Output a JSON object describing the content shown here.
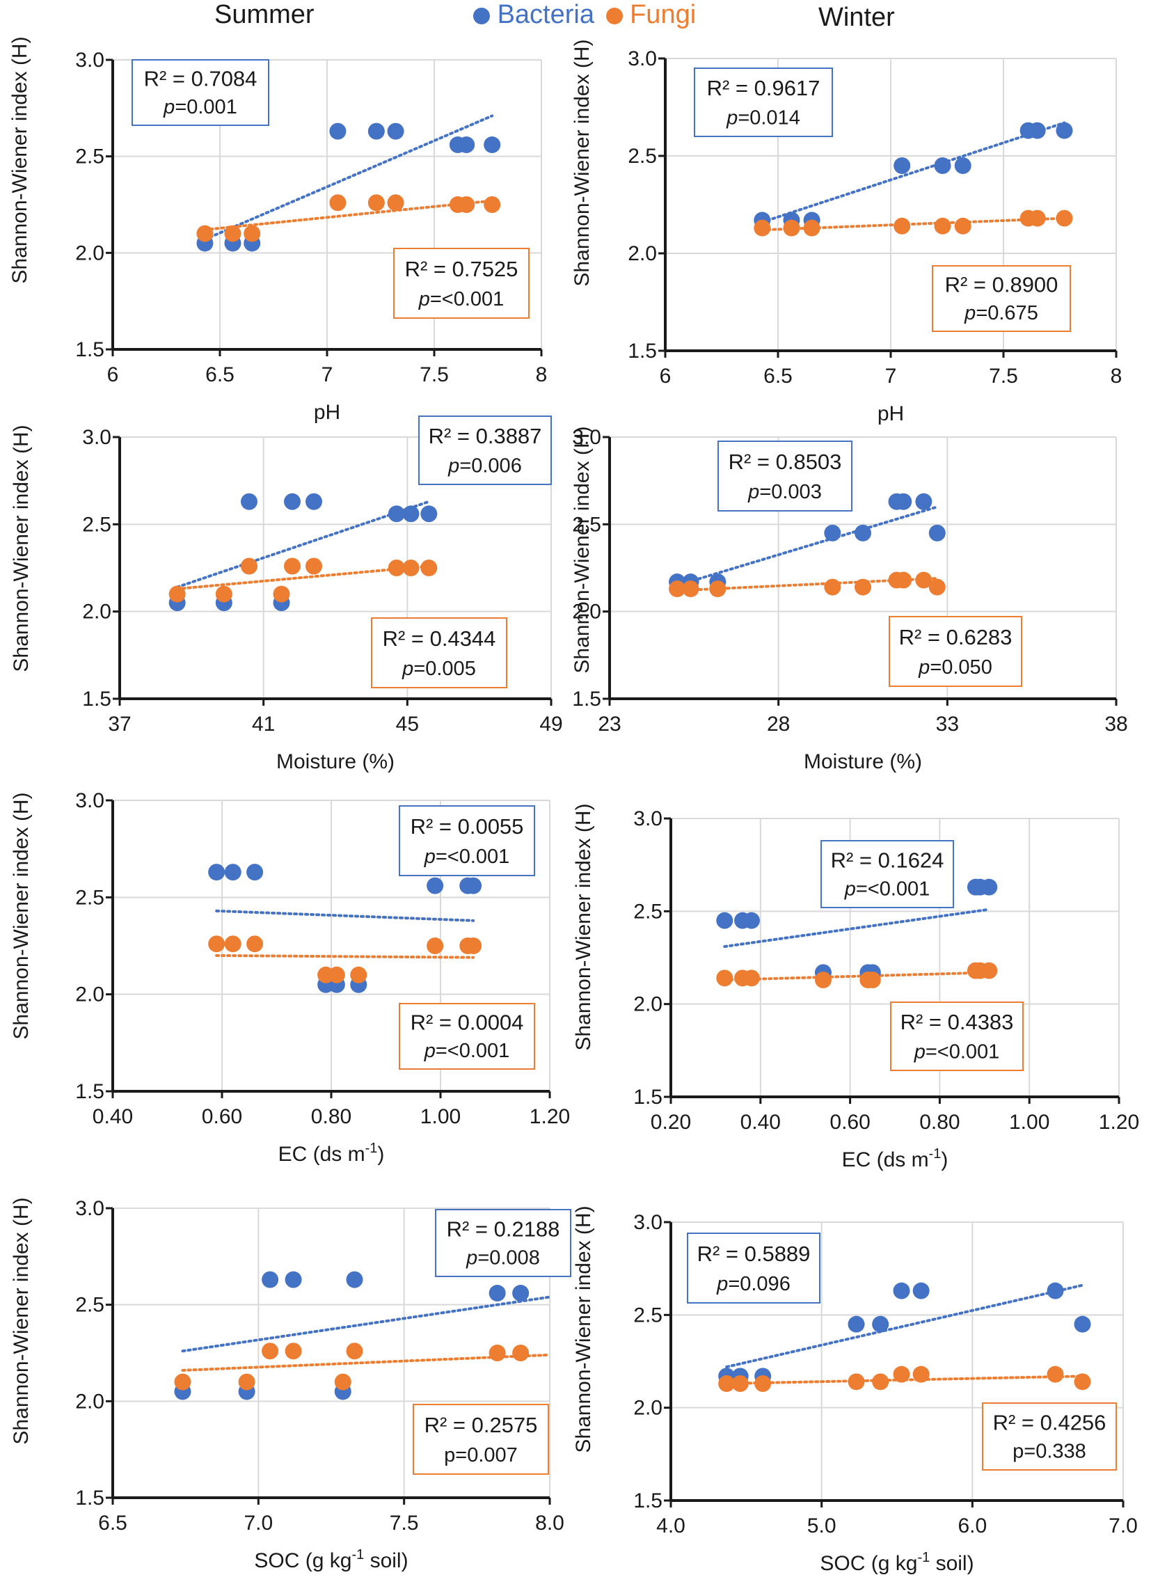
{
  "header": {
    "summer_title": "Summer",
    "winter_title": "Winter",
    "legend": [
      {
        "label": "Bacteria",
        "color": "#4472c4"
      },
      {
        "label": "Fungi",
        "color": "#ed7d31"
      }
    ]
  },
  "chart_data": [
    {
      "id": "summer-ph",
      "type": "scatter",
      "title": "",
      "xlabel": "pH",
      "ylabel": "Shannon-Wiener index (H)",
      "xlim": [
        6,
        8
      ],
      "ylim": [
        1.5,
        3.0
      ],
      "xticks": [
        "6",
        "6.5",
        "7",
        "7.5",
        "8"
      ],
      "yticks": [
        "1.5",
        "2.0",
        "2.5",
        "3.0"
      ],
      "series": [
        {
          "name": "Bacteria",
          "x": [
            6.43,
            6.56,
            6.65,
            7.05,
            7.23,
            7.32,
            7.61,
            7.65,
            7.77
          ],
          "y": [
            2.05,
            2.05,
            2.05,
            2.63,
            2.63,
            2.63,
            2.56,
            2.56,
            2.56
          ],
          "trend_x": [
            6.43,
            7.77
          ],
          "trend_y": [
            2.07,
            2.71
          ]
        },
        {
          "name": "Fungi",
          "x": [
            6.43,
            6.56,
            6.65,
            7.05,
            7.23,
            7.32,
            7.61,
            7.65,
            7.77
          ],
          "y": [
            2.1,
            2.1,
            2.1,
            2.26,
            2.26,
            2.26,
            2.25,
            2.25,
            2.25
          ],
          "trend_x": [
            6.43,
            7.77
          ],
          "trend_y": [
            2.12,
            2.27
          ]
        }
      ],
      "annotations": [
        {
          "r2": "R² = 0.7084",
          "p_label": "p",
          "p_value": "=0.001",
          "color": "#4472c4"
        },
        {
          "r2": "R² = 0.7525",
          "p_label": "p",
          "p_value": "=<0.001",
          "color": "#ed7d31"
        }
      ]
    },
    {
      "id": "winter-ph",
      "type": "scatter",
      "title": "",
      "xlabel": "pH",
      "ylabel": "Shannon-Wiener index (H)",
      "xlim": [
        6,
        8
      ],
      "ylim": [
        1.5,
        3.0
      ],
      "xticks": [
        "6",
        "6.5",
        "7",
        "7.5",
        "8"
      ],
      "yticks": [
        "1.5",
        "2.0",
        "2.5",
        "3.0"
      ],
      "series": [
        {
          "name": "Bacteria",
          "x": [
            6.43,
            6.56,
            6.65,
            7.05,
            7.23,
            7.32,
            7.61,
            7.65,
            7.77
          ],
          "y": [
            2.17,
            2.17,
            2.17,
            2.45,
            2.45,
            2.45,
            2.63,
            2.63,
            2.63
          ],
          "trend_x": [
            6.43,
            7.77
          ],
          "trend_y": [
            2.16,
            2.67
          ]
        },
        {
          "name": "Fungi",
          "x": [
            6.43,
            6.56,
            6.65,
            7.05,
            7.23,
            7.32,
            7.61,
            7.65,
            7.77
          ],
          "y": [
            2.13,
            2.13,
            2.13,
            2.14,
            2.14,
            2.14,
            2.18,
            2.18,
            2.18
          ],
          "trend_x": [
            6.43,
            7.77
          ],
          "trend_y": [
            2.12,
            2.18
          ]
        }
      ],
      "annotations": [
        {
          "r2": "R² = 0.9617",
          "p_label": "p",
          "p_value": "=0.014",
          "color": "#4472c4"
        },
        {
          "r2": "R² = 0.8900",
          "p_label": "p",
          "p_value": "=0.675",
          "color": "#ed7d31"
        }
      ]
    },
    {
      "id": "summer-moisture",
      "type": "scatter",
      "title": "",
      "xlabel": "Moisture (%)",
      "ylabel": "Shannon-Wiener index (H)",
      "xlim": [
        37,
        49
      ],
      "ylim": [
        1.5,
        3.0
      ],
      "xticks": [
        "37",
        "41",
        "45",
        "49"
      ],
      "yticks": [
        "1.5",
        "2.0",
        "2.5",
        "3.0"
      ],
      "series": [
        {
          "name": "Bacteria",
          "x": [
            38.6,
            39.9,
            41.5,
            40.6,
            41.8,
            42.4,
            44.7,
            45.1,
            45.6
          ],
          "y": [
            2.05,
            2.05,
            2.05,
            2.63,
            2.63,
            2.63,
            2.56,
            2.56,
            2.56
          ],
          "trend_x": [
            38.6,
            45.6
          ],
          "trend_y": [
            2.14,
            2.63
          ]
        },
        {
          "name": "Fungi",
          "x": [
            38.6,
            39.9,
            41.5,
            40.6,
            41.8,
            42.4,
            44.7,
            45.1,
            45.6
          ],
          "y": [
            2.1,
            2.1,
            2.1,
            2.26,
            2.26,
            2.26,
            2.25,
            2.25,
            2.25
          ],
          "trend_x": [
            38.6,
            45.6
          ],
          "trend_y": [
            2.13,
            2.26
          ]
        }
      ],
      "annotations": [
        {
          "r2": "R² = 0.3887",
          "p_label": "p",
          "p_value": "=0.006",
          "color": "#4472c4"
        },
        {
          "r2": "R² = 0.4344",
          "p_label": "p",
          "p_value": "=0.005",
          "color": "#ed7d31"
        }
      ]
    },
    {
      "id": "winter-moisture",
      "type": "scatter",
      "title": "",
      "xlabel": "Moisture (%)",
      "ylabel": "Shannon-Wiener index (H)",
      "xlim": [
        23,
        38
      ],
      "ylim": [
        1.5,
        3.0
      ],
      "xticks": [
        "23",
        "28",
        "33",
        "38"
      ],
      "yticks": [
        "1.5",
        "2.0",
        "2.5",
        "3.0"
      ],
      "series": [
        {
          "name": "Bacteria",
          "x": [
            25.0,
            25.4,
            26.2,
            29.6,
            30.5,
            31.5,
            31.7,
            32.3,
            32.7
          ],
          "y": [
            2.17,
            2.17,
            2.17,
            2.45,
            2.45,
            2.63,
            2.63,
            2.63,
            2.45
          ],
          "trend_x": [
            25.0,
            32.7
          ],
          "trend_y": [
            2.15,
            2.6
          ]
        },
        {
          "name": "Fungi",
          "x": [
            25.0,
            25.4,
            26.2,
            29.6,
            30.5,
            31.5,
            31.7,
            32.3,
            32.7
          ],
          "y": [
            2.13,
            2.13,
            2.13,
            2.14,
            2.14,
            2.18,
            2.18,
            2.18,
            2.14
          ],
          "trend_x": [
            25.0,
            32.7
          ],
          "trend_y": [
            2.12,
            2.19
          ]
        }
      ],
      "annotations": [
        {
          "r2": "R² = 0.8503",
          "p_label": "p",
          "p_value": "=0.003",
          "color": "#4472c4"
        },
        {
          "r2": "R² = 0.6283",
          "p_label": "p",
          "p_value": "=0.050",
          "color": "#ed7d31"
        }
      ]
    },
    {
      "id": "summer-ec",
      "type": "scatter",
      "title": "",
      "xlabel": "EC (ds m",
      "xlabel_sup": "-1",
      "xlabel_tail": ")",
      "ylabel": "Shannon-Wiener index (H)",
      "xlim": [
        0.4,
        1.2
      ],
      "ylim": [
        1.5,
        3.0
      ],
      "xticks": [
        "0.40",
        "0.60",
        "0.80",
        "1.00",
        "1.20"
      ],
      "yticks": [
        "1.5",
        "2.0",
        "2.5",
        "3.0"
      ],
      "series": [
        {
          "name": "Bacteria",
          "x": [
            0.59,
            0.62,
            0.66,
            0.79,
            0.81,
            0.85,
            0.99,
            1.05,
            1.06
          ],
          "y": [
            2.63,
            2.63,
            2.63,
            2.05,
            2.05,
            2.05,
            2.56,
            2.56,
            2.56
          ],
          "trend_x": [
            0.59,
            1.06
          ],
          "trend_y": [
            2.43,
            2.38
          ]
        },
        {
          "name": "Fungi",
          "x": [
            0.59,
            0.62,
            0.66,
            0.79,
            0.81,
            0.85,
            0.99,
            1.05,
            1.06
          ],
          "y": [
            2.26,
            2.26,
            2.26,
            2.1,
            2.1,
            2.1,
            2.25,
            2.25,
            2.25
          ],
          "trend_x": [
            0.59,
            1.06
          ],
          "trend_y": [
            2.2,
            2.19
          ]
        }
      ],
      "annotations": [
        {
          "r2": "R² = 0.0055",
          "p_label": "p",
          "p_value": "=<0.001",
          "color": "#4472c4"
        },
        {
          "r2": "R² = 0.0004",
          "p_label": "p",
          "p_value": "=<0.001",
          "color": "#ed7d31"
        }
      ]
    },
    {
      "id": "winter-ec",
      "type": "scatter",
      "title": "",
      "xlabel": "EC (ds m",
      "xlabel_sup": "-1",
      "xlabel_tail": ")",
      "ylabel": "Shannon-Wiener index (H)",
      "xlim": [
        0.2,
        1.2
      ],
      "ylim": [
        1.5,
        3.0
      ],
      "xticks": [
        "0.20",
        "0.40",
        "0.60",
        "0.80",
        "1.00",
        "1.20"
      ],
      "yticks": [
        "1.5",
        "2.0",
        "2.5",
        "3.0"
      ],
      "series": [
        {
          "name": "Bacteria",
          "x": [
            0.32,
            0.36,
            0.38,
            0.54,
            0.64,
            0.65,
            0.88,
            0.89,
            0.91
          ],
          "y": [
            2.45,
            2.45,
            2.45,
            2.17,
            2.17,
            2.17,
            2.63,
            2.63,
            2.63
          ],
          "trend_x": [
            0.32,
            0.91
          ],
          "trend_y": [
            2.31,
            2.51
          ]
        },
        {
          "name": "Fungi",
          "x": [
            0.32,
            0.36,
            0.38,
            0.54,
            0.64,
            0.65,
            0.88,
            0.89,
            0.91
          ],
          "y": [
            2.14,
            2.14,
            2.14,
            2.13,
            2.13,
            2.13,
            2.18,
            2.18,
            2.18
          ],
          "trend_x": [
            0.32,
            0.91
          ],
          "trend_y": [
            2.13,
            2.17
          ]
        }
      ],
      "annotations": [
        {
          "r2": "R² = 0.1624",
          "p_label": "p",
          "p_value": "=<0.001",
          "color": "#4472c4"
        },
        {
          "r2": "R² = 0.4383",
          "p_label": "p",
          "p_value": "=<0.001",
          "color": "#ed7d31"
        }
      ]
    },
    {
      "id": "summer-soc",
      "type": "scatter",
      "title": "",
      "xlabel": "SOC (g kg",
      "xlabel_sup": "-1",
      "xlabel_tail": " soil)",
      "ylabel": "Shannon-Wiener index (H)",
      "xlim": [
        6.5,
        8.0
      ],
      "ylim": [
        1.5,
        3.0
      ],
      "xticks": [
        "6.5",
        "7.0",
        "7.5",
        "8.0"
      ],
      "yticks": [
        "1.5",
        "2.0",
        "2.5",
        "3.0"
      ],
      "series": [
        {
          "name": "Bacteria",
          "x": [
            6.74,
            6.96,
            7.29,
            7.04,
            7.12,
            7.33,
            7.82,
            7.9
          ],
          "y": [
            2.05,
            2.05,
            2.05,
            2.63,
            2.63,
            2.63,
            2.56,
            2.56
          ],
          "trend_x": [
            6.74,
            8.0
          ],
          "trend_y": [
            2.26,
            2.54
          ]
        },
        {
          "name": "Fungi",
          "x": [
            6.74,
            6.96,
            7.29,
            7.04,
            7.12,
            7.33,
            7.82,
            7.9
          ],
          "y": [
            2.1,
            2.1,
            2.1,
            2.26,
            2.26,
            2.26,
            2.25,
            2.25
          ],
          "trend_x": [
            6.74,
            8.0
          ],
          "trend_y": [
            2.16,
            2.24
          ]
        }
      ],
      "annotations": [
        {
          "r2": "R² = 0.2188",
          "p_label": "p",
          "p_value": "=0.008",
          "color": "#4472c4"
        },
        {
          "r2": "R² = 0.2575",
          "p_label": "",
          "p_value": "p=0.007",
          "color": "#ed7d31"
        }
      ]
    },
    {
      "id": "winter-soc",
      "type": "scatter",
      "title": "",
      "xlabel": "SOC (g kg",
      "xlabel_sup": "-1",
      "xlabel_tail": " soil)",
      "ylabel": "Shannon-Wiener index (H)",
      "xlim": [
        4.0,
        7.0
      ],
      "ylim": [
        1.5,
        3.0
      ],
      "xticks": [
        "4.0",
        "5.0",
        "6.0",
        "7.0"
      ],
      "yticks": [
        "1.5",
        "2.0",
        "2.5",
        "3.0"
      ],
      "series": [
        {
          "name": "Bacteria",
          "x": [
            4.37,
            4.46,
            4.61,
            5.23,
            5.39,
            5.53,
            5.66,
            6.55,
            6.73
          ],
          "y": [
            2.17,
            2.17,
            2.17,
            2.45,
            2.45,
            2.63,
            2.63,
            2.63,
            2.45
          ],
          "trend_x": [
            4.37,
            6.73
          ],
          "trend_y": [
            2.22,
            2.66
          ]
        },
        {
          "name": "Fungi",
          "x": [
            4.37,
            4.46,
            4.61,
            5.23,
            5.39,
            5.53,
            5.66,
            6.55,
            6.73
          ],
          "y": [
            2.13,
            2.13,
            2.13,
            2.14,
            2.14,
            2.18,
            2.18,
            2.18,
            2.14
          ],
          "trend_x": [
            4.37,
            6.73
          ],
          "trend_y": [
            2.13,
            2.17
          ]
        }
      ],
      "annotations": [
        {
          "r2": "R² = 0.5889",
          "p_label": "p",
          "p_value": "=0.096",
          "color": "#4472c4"
        },
        {
          "r2": "R² = 0.4256",
          "p_label": "",
          "p_value": "p=0.338",
          "color": "#ed7d31"
        }
      ]
    }
  ]
}
